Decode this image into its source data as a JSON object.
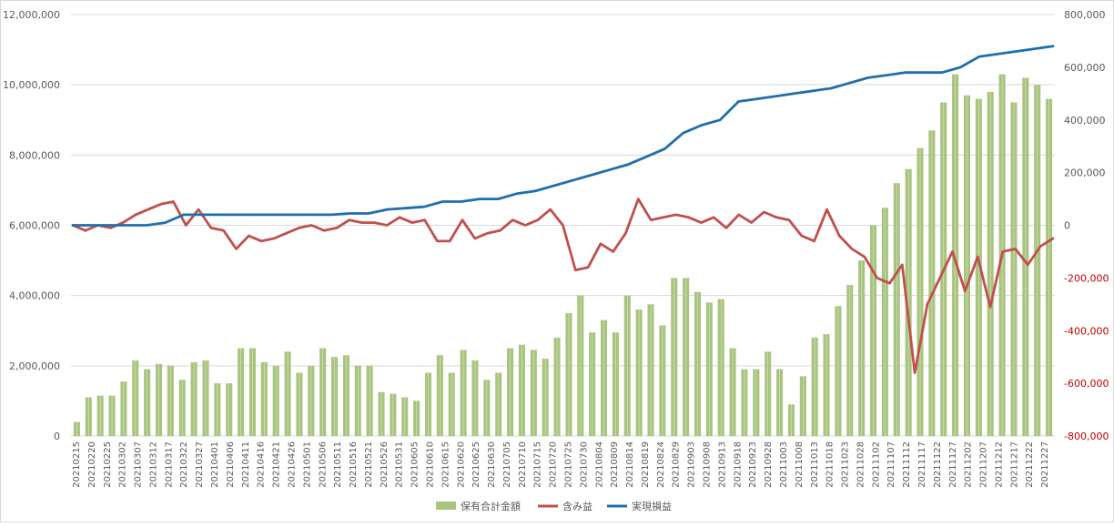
{
  "chart_data": {
    "type": "bar",
    "title": "",
    "colors": {
      "bars": "#a9c47f",
      "unrealized": "#c0504d",
      "realized": "#1f6fad",
      "grid": "#d9d9d9",
      "axis_text": "#595959"
    },
    "y_left": {
      "min": 0,
      "max": 12000000,
      "ticks": [
        "0",
        "2,000,000",
        "4,000,000",
        "6,000,000",
        "8,000,000",
        "10,000,000",
        "12,000,000"
      ]
    },
    "y_right": {
      "min": -800000,
      "max": 800000,
      "ticks": [
        "-800,000",
        "-600,000",
        "-400,000",
        "-200,000",
        "0",
        "200,000",
        "400,000",
        "600,000",
        "800,000"
      ]
    },
    "x_tick_labels": [
      "20210215",
      "20210220",
      "20210225",
      "20210302",
      "20210307",
      "20210312",
      "20210317",
      "20210322",
      "20210327",
      "20210401",
      "20210406",
      "20210411",
      "20210416",
      "20210421",
      "20210426",
      "20210501",
      "20210506",
      "20210511",
      "20210516",
      "20210521",
      "20210526",
      "20210531",
      "20210605",
      "20210610",
      "20210615",
      "20210620",
      "20210625",
      "20210630",
      "20210705",
      "20210710",
      "20210715",
      "20210720",
      "20210725",
      "20210730",
      "20210804",
      "20210809",
      "20210814",
      "20210819",
      "20210824",
      "20210829",
      "20210903",
      "20210908",
      "20210913",
      "20210918",
      "20210923",
      "20210928",
      "20211003",
      "20211008",
      "20211013",
      "20211018",
      "20211023",
      "20211028",
      "20211102",
      "20211107",
      "20211112",
      "20211117",
      "20211122",
      "20211127",
      "20211202",
      "20211207",
      "20211212",
      "20211217",
      "20211222",
      "20211227"
    ],
    "legend": {
      "position": "bottom",
      "items": [
        "保有合計金額",
        "含み益",
        "実現損益"
      ]
    },
    "series": [
      {
        "name": "保有合計金額",
        "axis": "left",
        "kind": "bar",
        "values": [
          400000,
          1100000,
          1150000,
          1150000,
          1550000,
          2150000,
          1900000,
          2050000,
          2000000,
          1600000,
          2100000,
          2150000,
          1500000,
          1500000,
          2500000,
          2500000,
          2100000,
          2000000,
          2400000,
          1800000,
          2000000,
          2500000,
          2250000,
          2300000,
          2000000,
          2000000,
          1250000,
          1200000,
          1100000,
          1000000,
          1800000,
          2300000,
          1800000,
          2450000,
          2150000,
          1600000,
          1800000,
          2500000,
          2600000,
          2450000,
          2200000,
          2800000,
          3500000,
          4000000,
          2950000,
          3300000,
          2950000,
          4000000,
          3600000,
          3750000,
          3150000,
          4500000,
          4500000,
          4100000,
          3800000,
          3900000,
          2500000,
          1900000,
          1900000,
          2400000,
          1900000,
          900000,
          1700000,
          2800000,
          2900000,
          3700000,
          4300000,
          5000000,
          6000000,
          6500000,
          7200000,
          7600000,
          8200000,
          8700000,
          9500000,
          10300000,
          9700000,
          9600000,
          9800000,
          10300000,
          9500000,
          10200000,
          10000000,
          9600000
        ]
      },
      {
        "name": "含み益",
        "axis": "right",
        "kind": "line",
        "values": [
          0,
          -20000,
          0,
          -10000,
          10000,
          40000,
          60000,
          80000,
          90000,
          0,
          60000,
          -10000,
          -20000,
          -90000,
          -40000,
          -60000,
          -50000,
          -30000,
          -10000,
          0,
          -20000,
          -10000,
          20000,
          10000,
          10000,
          0,
          30000,
          10000,
          20000,
          -60000,
          -60000,
          20000,
          -50000,
          -30000,
          -20000,
          20000,
          0,
          20000,
          60000,
          0,
          -170000,
          -160000,
          -70000,
          -100000,
          -30000,
          100000,
          20000,
          30000,
          40000,
          30000,
          10000,
          30000,
          -10000,
          40000,
          10000,
          50000,
          30000,
          20000,
          -40000,
          -60000,
          60000,
          -40000,
          -90000,
          -120000,
          -200000,
          -220000,
          -150000,
          -560000,
          -300000,
          -200000,
          -100000,
          -250000,
          -120000,
          -310000,
          -100000,
          -90000,
          -150000,
          -80000,
          -50000
        ]
      },
      {
        "name": "実現損益",
        "axis": "right",
        "kind": "line",
        "values": [
          0,
          0,
          0,
          0,
          0,
          10000,
          40000,
          40000,
          40000,
          40000,
          40000,
          40000,
          40000,
          40000,
          40000,
          45000,
          45000,
          60000,
          65000,
          70000,
          90000,
          90000,
          100000,
          100000,
          120000,
          130000,
          150000,
          170000,
          190000,
          210000,
          230000,
          260000,
          290000,
          350000,
          380000,
          400000,
          470000,
          480000,
          490000,
          500000,
          510000,
          520000,
          540000,
          560000,
          570000,
          580000,
          580000,
          580000,
          600000,
          640000,
          650000,
          660000,
          670000,
          680000
        ]
      }
    ]
  }
}
